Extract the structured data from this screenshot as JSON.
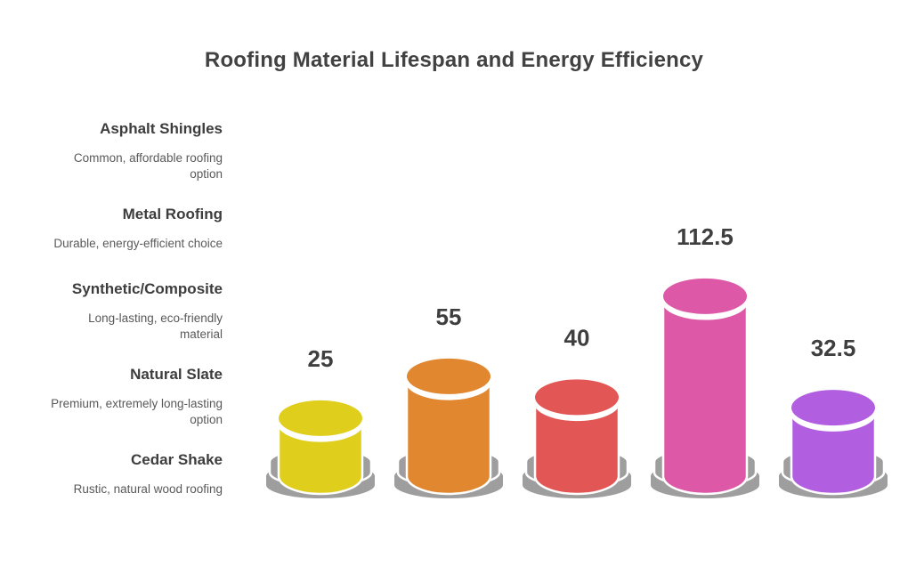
{
  "chart_data": {
    "type": "bar",
    "variant": "3d-cylinder-pedestal-infographic",
    "title": "Roofing Material Lifespan and Energy Efficiency",
    "categories": [
      "Asphalt Shingles",
      "Metal Roofing",
      "Synthetic/Composite",
      "Natural Slate",
      "Cedar Shake"
    ],
    "descriptions": [
      "Common, affordable roofing option",
      "Durable, energy-efficient choice",
      "Long-lasting, eco-friendly material",
      "Premium, extremely long-lasting option",
      "Rustic, natural wood roofing"
    ],
    "values": [
      25,
      55,
      40,
      112.5,
      32.5
    ],
    "value_labels": [
      "25",
      "55",
      "40",
      "112.5",
      "32.5"
    ],
    "colors": [
      "#E0CE1D",
      "#E0872F",
      "#E25755",
      "#DD58A6",
      "#B15FE0"
    ],
    "pedestal_color": "#9E9E9E",
    "background": "#FFFFFF",
    "title_color": "#424242",
    "value_label_color": "#3F3F3F",
    "category_name_color": "#3D3D3D",
    "description_color": "#595959",
    "axes": false,
    "gridlines": false,
    "legend_position": "left-category-labels"
  }
}
